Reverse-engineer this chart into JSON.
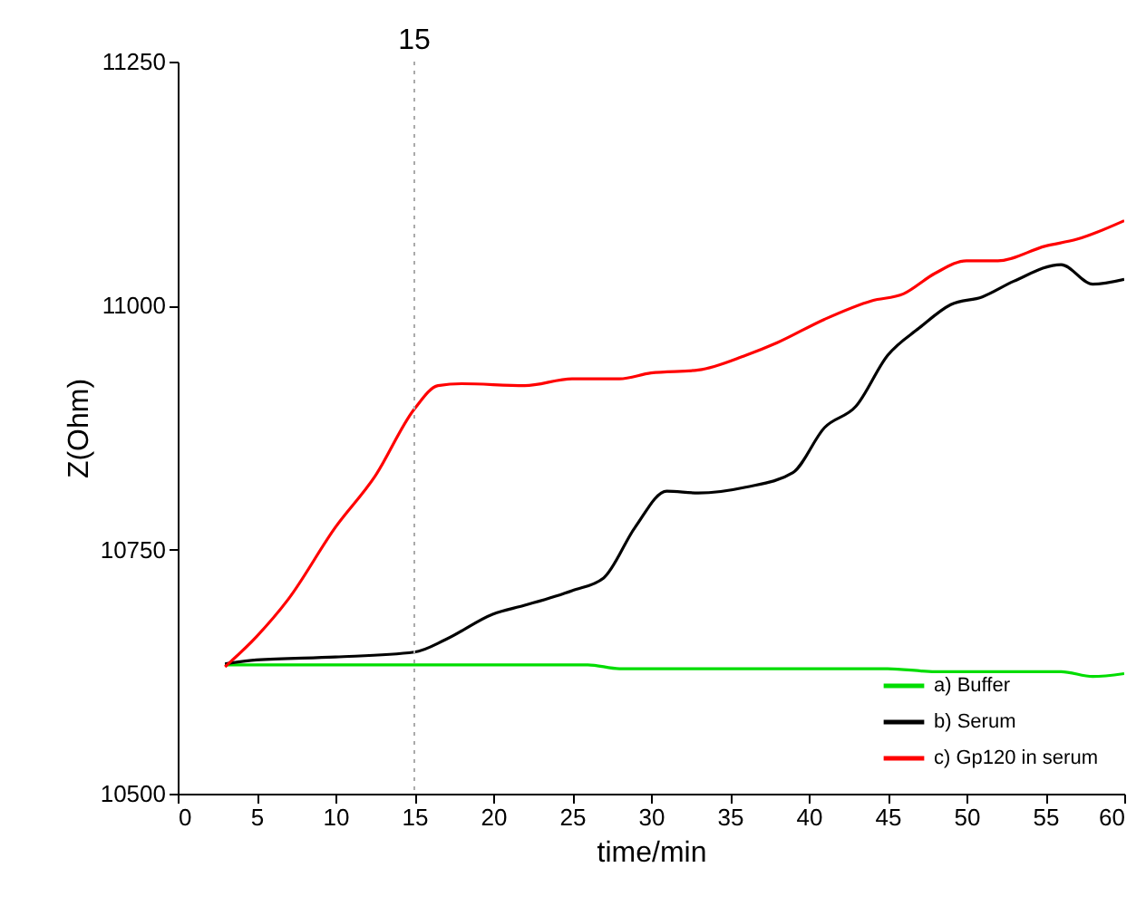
{
  "chart_data": {
    "type": "line",
    "xlabel": "time/min",
    "ylabel": "Z(Ohm)",
    "xlim": [
      0,
      60
    ],
    "ylim": [
      10500,
      11250
    ],
    "xticks": [
      0,
      5,
      10,
      15,
      20,
      25,
      30,
      35,
      40,
      45,
      50,
      55,
      60
    ],
    "yticks": [
      10500,
      10750,
      11000,
      11250
    ],
    "grid": false,
    "legend": "bottom right",
    "line_style": "solid",
    "marker": "none",
    "ref_lines": [
      {
        "axis": "x",
        "value": 15,
        "label": "15",
        "line_style": "dotted",
        "color": "#aaaaaa"
      }
    ],
    "series": [
      {
        "name": "a) Buffer",
        "color": "#00dd00",
        "x": [
          3,
          10,
          20,
          26,
          28,
          35,
          45,
          48,
          52,
          56,
          58,
          60
        ],
        "values": [
          10632,
          10632,
          10632,
          10632,
          10628,
          10628,
          10628,
          10625,
          10625,
          10625,
          10620,
          10623
        ]
      },
      {
        "name": "b) Serum",
        "color": "#000000",
        "x": [
          3,
          5,
          10,
          15,
          17,
          20,
          22,
          25,
          27,
          29,
          31,
          33,
          36,
          39,
          41,
          43,
          45,
          47,
          49,
          51,
          53,
          56,
          58,
          60
        ],
        "values": [
          10633,
          10637,
          10640,
          10645,
          10658,
          10684,
          10693,
          10708,
          10721,
          10773,
          10810,
          10808,
          10814,
          10829,
          10875,
          10897,
          10949,
          10977,
          11001,
          11009,
          11025,
          11042,
          11022,
          11027
        ]
      },
      {
        "name": "c) Gp120 in serum",
        "color": "#ff0000",
        "x": [
          3,
          5,
          7,
          10,
          12.5,
          15,
          16.5,
          18,
          22,
          25,
          28,
          30,
          33,
          36,
          38,
          41,
          44,
          46,
          48,
          50,
          52,
          55,
          57,
          60
        ],
        "values": [
          10630,
          10661,
          10699,
          10773,
          10825,
          10894,
          10918,
          10920,
          10918,
          10925,
          10925,
          10931,
          10934,
          10949,
          10962,
          10986,
          11005,
          11012,
          11033,
          11046,
          11046,
          11061,
          11068,
          11087
        ]
      }
    ]
  }
}
